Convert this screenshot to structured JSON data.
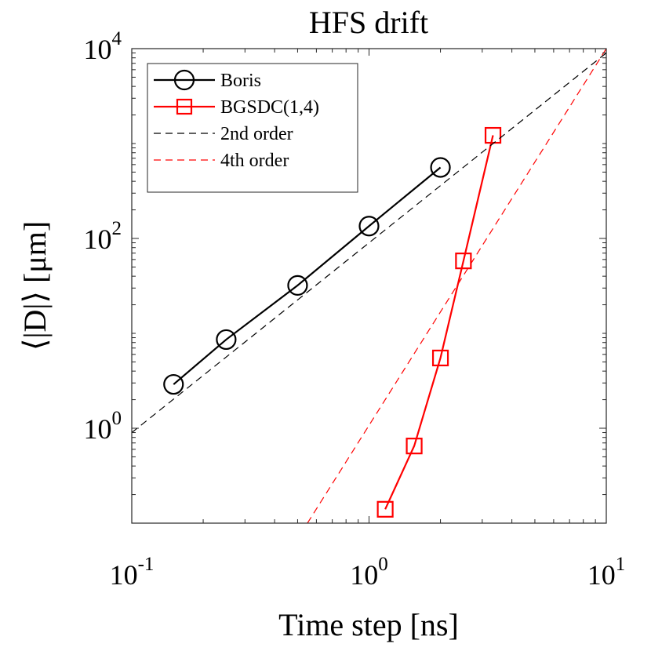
{
  "chart_data": {
    "type": "line",
    "title": "HFS drift",
    "xlabel": "Time step [ns]",
    "ylabel": "⟨|D|⟩ [μm]",
    "xscale": "log",
    "yscale": "log",
    "xlim": [
      0.1,
      10
    ],
    "ylim": [
      0.1,
      10000
    ],
    "x_ticks": [
      0.1,
      1,
      10
    ],
    "y_ticks": [
      1,
      100,
      10000
    ],
    "x_tick_labels": [
      {
        "base": "10",
        "exp": "-1"
      },
      {
        "base": "10",
        "exp": "0"
      },
      {
        "base": "10",
        "exp": "1"
      }
    ],
    "y_tick_labels": [
      {
        "base": "10",
        "exp": "0"
      },
      {
        "base": "10",
        "exp": "2"
      },
      {
        "base": "10",
        "exp": "4"
      }
    ],
    "grid": false,
    "legend_position": "top-left",
    "series": [
      {
        "name": "Boris",
        "color": "#000000",
        "marker": "circle",
        "line": "solid",
        "x": [
          0.15,
          0.25,
          0.5,
          1,
          2
        ],
        "y": [
          2.9,
          8.6,
          32,
          135,
          560
        ]
      },
      {
        "name": "BGSDC(1,4)",
        "color": "#ff0000",
        "marker": "square",
        "line": "solid",
        "x": [
          1.17,
          1.55,
          2,
          2.5,
          3.33
        ],
        "y": [
          0.14,
          0.65,
          5.5,
          58,
          1220
        ]
      },
      {
        "name": "2nd order",
        "color": "#000000",
        "marker": "none",
        "line": "dashed",
        "x": [
          0.1,
          10
        ],
        "y": [
          0.9,
          9000
        ]
      },
      {
        "name": "4th order",
        "color": "#ff0000",
        "marker": "none",
        "line": "dashed",
        "x": [
          0.55,
          10
        ],
        "y": [
          0.1,
          10000
        ]
      }
    ]
  }
}
